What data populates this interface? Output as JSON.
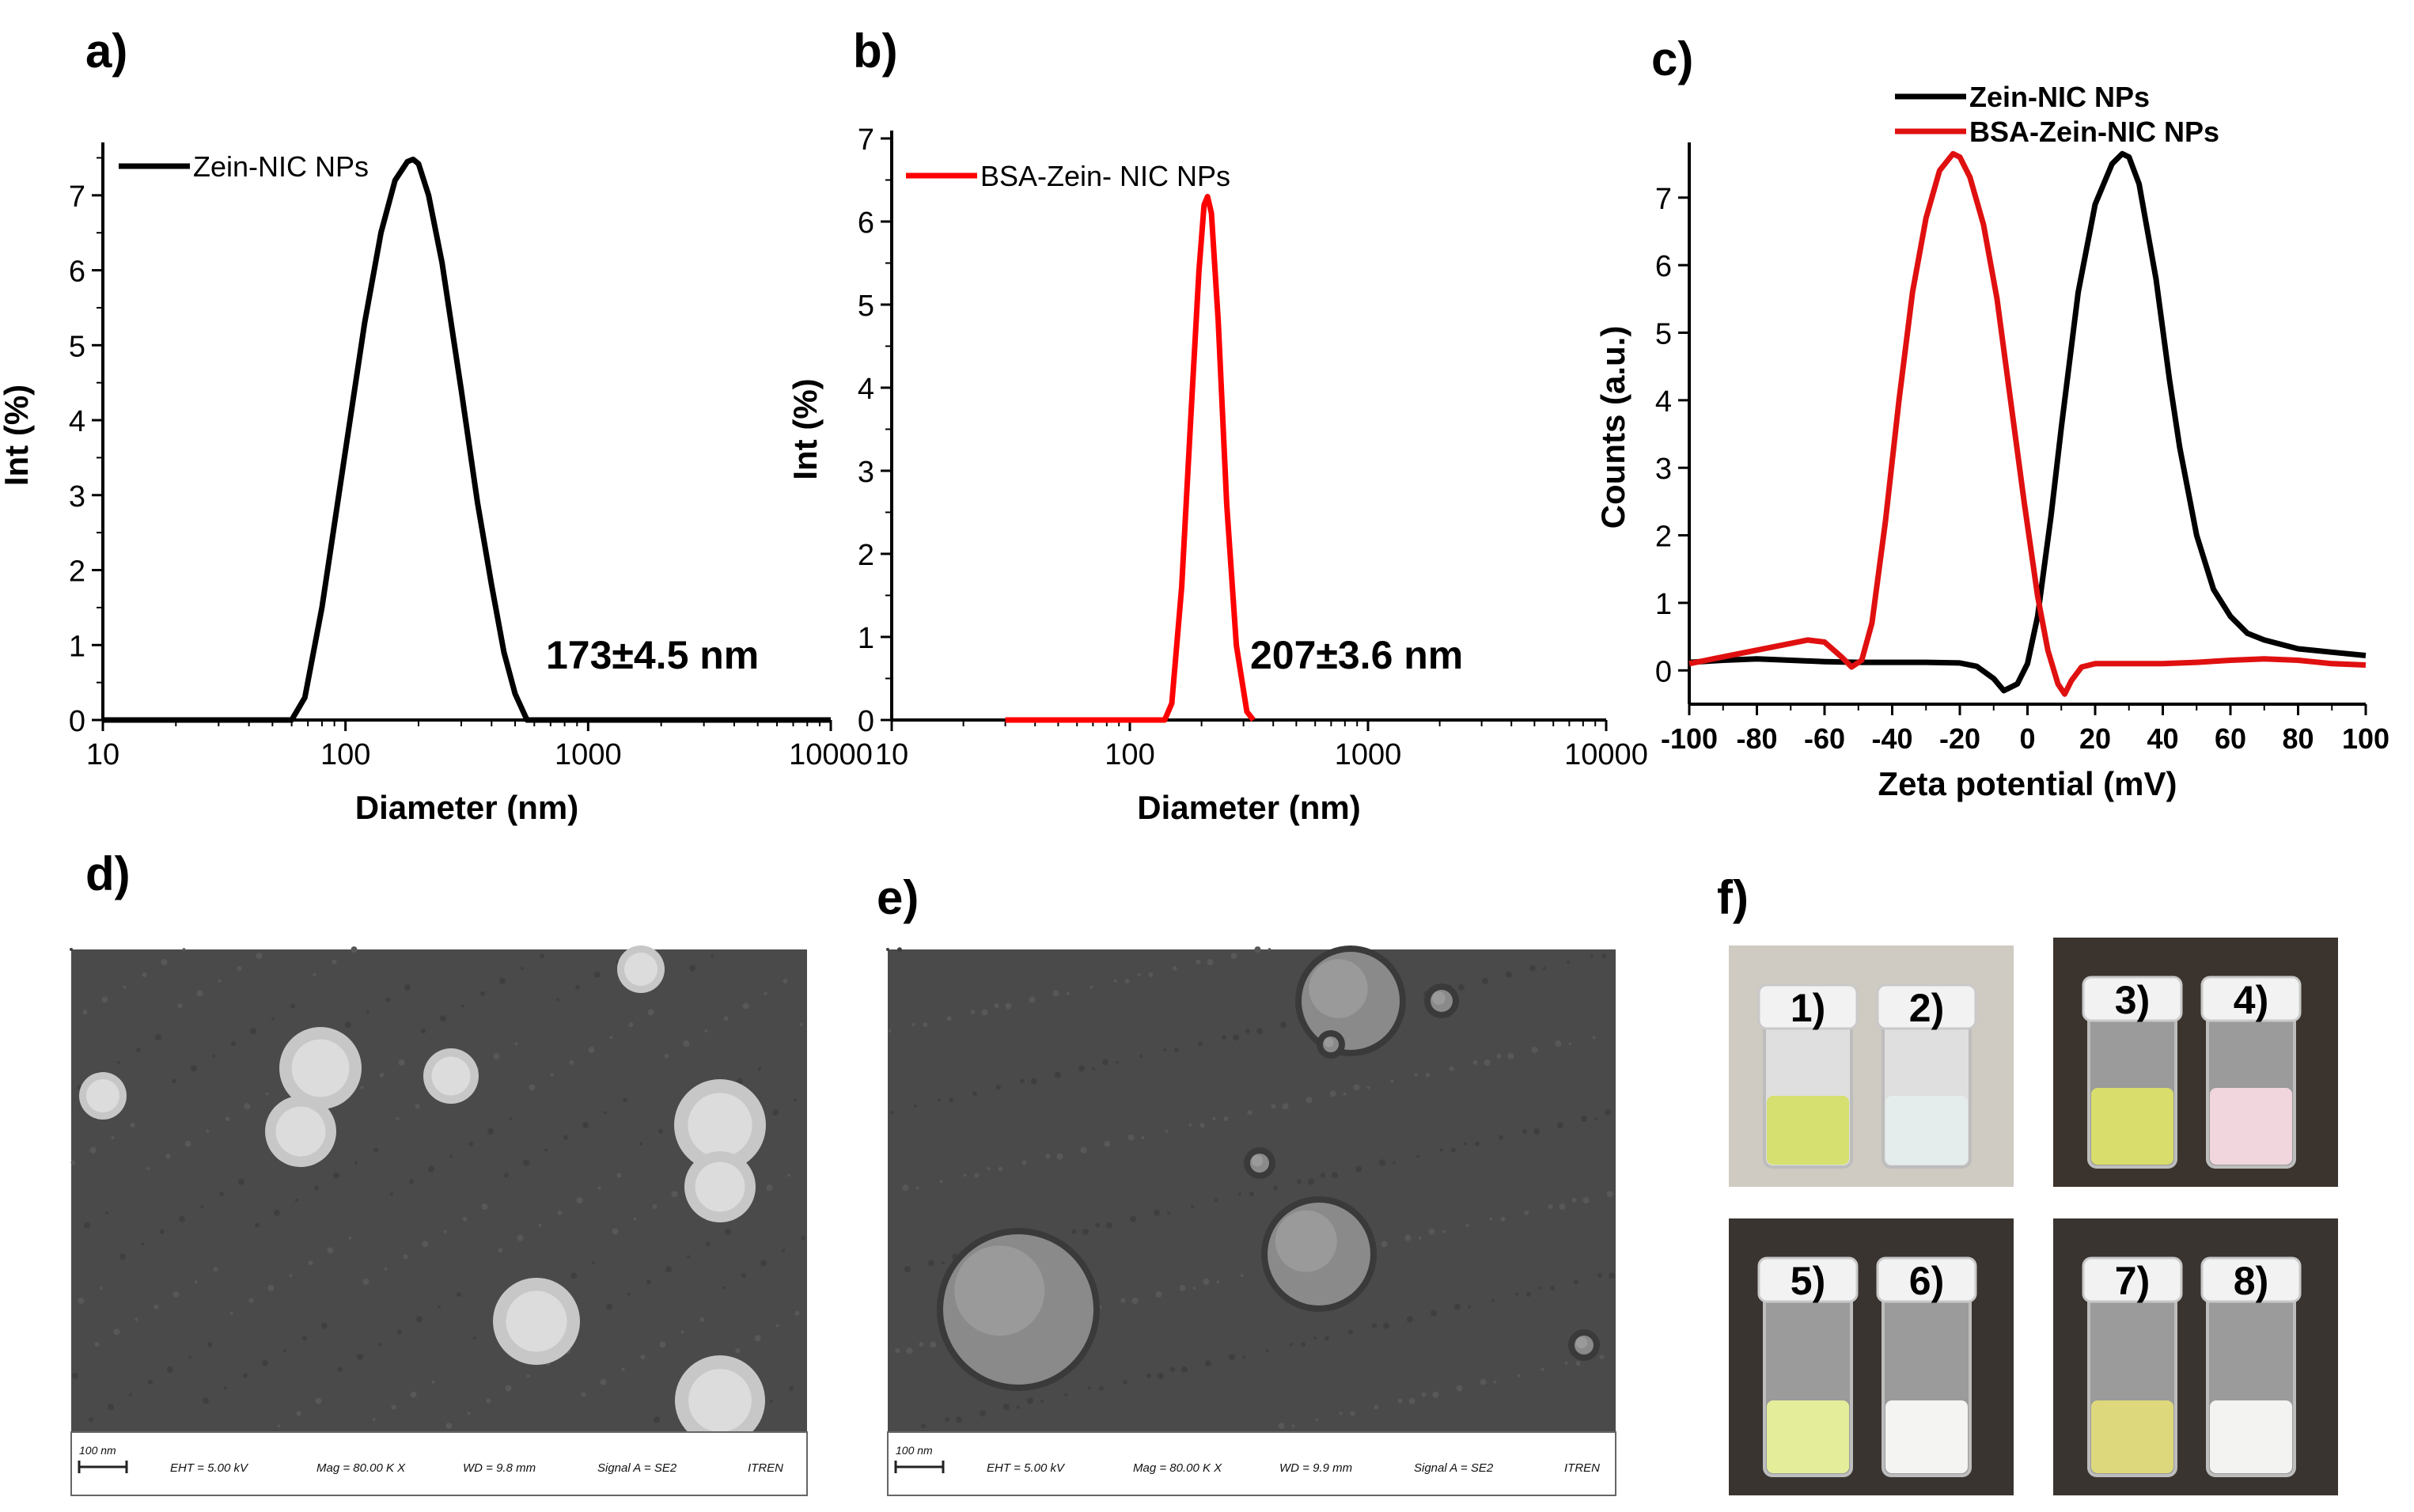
{
  "panels": {
    "a": "a)",
    "b": "b)",
    "c": "c)",
    "d": "d)",
    "e": "e)",
    "f": "f)"
  },
  "chart_data": [
    {
      "panel": "a",
      "type": "line",
      "xscale": "log",
      "xlabel": "Diameter (nm)",
      "ylabel": "Int (%)",
      "xlim": [
        10,
        10000
      ],
      "ylim": [
        0,
        7.6
      ],
      "xticks": [
        "10",
        "100",
        "1000",
        "10000"
      ],
      "yticks": [
        "0",
        "1",
        "2",
        "3",
        "4",
        "5",
        "6",
        "7"
      ],
      "annotation": "173±4.5 nm",
      "legend": "top-left",
      "series": [
        {
          "name": "Zein-NIC NPs",
          "color": "#000000",
          "x": [
            10,
            60,
            68,
            80,
            100,
            120,
            140,
            160,
            180,
            190,
            200,
            220,
            250,
            300,
            350,
            400,
            450,
            500,
            560,
            600,
            1000,
            10000
          ],
          "y": [
            0,
            0,
            0.3,
            1.5,
            3.6,
            5.3,
            6.5,
            7.2,
            7.45,
            7.48,
            7.42,
            7.0,
            6.1,
            4.4,
            2.9,
            1.8,
            0.9,
            0.35,
            0,
            0,
            0,
            0
          ]
        }
      ]
    },
    {
      "panel": "b",
      "type": "line",
      "xscale": "log",
      "xlabel": "Diameter (nm)",
      "ylabel": "Int (%)",
      "xlim": [
        10,
        10000
      ],
      "ylim": [
        0,
        7
      ],
      "xticks": [
        "10",
        "100",
        "1000",
        "10000"
      ],
      "yticks": [
        "0",
        "1",
        "2",
        "3",
        "4",
        "5",
        "6",
        "7"
      ],
      "annotation": "207±3.6 nm",
      "legend": "top-left",
      "series": [
        {
          "name": "BSA-Zein- NIC NPs",
          "color": "#ff0000",
          "x": [
            30,
            140,
            150,
            165,
            180,
            195,
            205,
            212,
            220,
            235,
            255,
            280,
            310,
            330
          ],
          "y": [
            0,
            0,
            0.2,
            1.6,
            3.6,
            5.4,
            6.2,
            6.3,
            6.1,
            4.8,
            2.6,
            0.9,
            0.1,
            0
          ]
        }
      ]
    },
    {
      "panel": "c",
      "type": "line",
      "xlabel": "Zeta potential (mV)",
      "ylabel": "Counts (a.u.)",
      "xlim": [
        -100,
        100
      ],
      "ylim": [
        -0.5,
        7.7
      ],
      "xticks": [
        "-100",
        "-80",
        "-60",
        "-40",
        "-20",
        "0",
        "20",
        "40",
        "60",
        "80",
        "100"
      ],
      "yticks": [
        "0",
        "1",
        "2",
        "3",
        "4",
        "5",
        "6",
        "7"
      ],
      "legend": "top",
      "series": [
        {
          "name": "Zein-NIC NPs",
          "color": "#000000",
          "x": [
            -100,
            -90,
            -80,
            -70,
            -60,
            -50,
            -40,
            -30,
            -20,
            -15,
            -10,
            -7,
            -3,
            0,
            3,
            7,
            10,
            15,
            20,
            25,
            28,
            30,
            33,
            38,
            42,
            45,
            50,
            55,
            60,
            65,
            70,
            80,
            90,
            100
          ],
          "y": [
            0.12,
            0.15,
            0.17,
            0.15,
            0.13,
            0.12,
            0.12,
            0.12,
            0.11,
            0.06,
            -0.12,
            -0.3,
            -0.2,
            0.1,
            0.8,
            2.3,
            3.6,
            5.6,
            6.9,
            7.5,
            7.65,
            7.6,
            7.2,
            5.8,
            4.3,
            3.3,
            2.0,
            1.2,
            0.8,
            0.55,
            0.45,
            0.32,
            0.27,
            0.22
          ]
        },
        {
          "name": "BSA-Zein-NIC NPs",
          "color": "#e01010",
          "x": [
            -100,
            -90,
            -80,
            -70,
            -65,
            -60,
            -55,
            -52,
            -49,
            -46,
            -42,
            -38,
            -34,
            -30,
            -26,
            -22,
            -20,
            -17,
            -13,
            -9,
            -5,
            -1,
            3,
            6,
            9,
            11,
            13,
            16,
            20,
            30,
            40,
            50,
            60,
            70,
            80,
            90,
            100
          ],
          "y": [
            0.1,
            0.2,
            0.3,
            0.4,
            0.45,
            0.42,
            0.2,
            0.05,
            0.15,
            0.7,
            2.2,
            4.0,
            5.6,
            6.7,
            7.4,
            7.65,
            7.6,
            7.3,
            6.6,
            5.5,
            4.0,
            2.5,
            1.1,
            0.3,
            -0.2,
            -0.35,
            -0.15,
            0.05,
            0.1,
            0.1,
            0.1,
            0.12,
            0.15,
            0.17,
            0.15,
            0.1,
            0.08
          ]
        }
      ]
    }
  ],
  "sem": {
    "d": {
      "scale": "100 nm",
      "eht": "EHT =  5.00 kV",
      "mag": "Mag =  80.00 K X",
      "wd": "WD =  9.8 mm",
      "signal": "Signal A = SE2",
      "inst": "ITREN"
    },
    "e": {
      "scale": "100 nm",
      "eht": "EHT =  5.00 kV",
      "mag": "Mag =  80.00 K X",
      "wd": "WD =  9.9 mm",
      "signal": "Signal A = SE2",
      "inst": "ITREN"
    }
  },
  "vials": {
    "labels": [
      "1)",
      "2)",
      "3)",
      "4)",
      "5)",
      "6)",
      "7)",
      "8)"
    ],
    "liquid_colors": [
      "#d5e070",
      "#e4ecec",
      "#d9dd6c",
      "#f1d6de",
      "#e4ee9a",
      "#f4f5f2",
      "#ddd87c",
      "#f3f3f1"
    ]
  }
}
